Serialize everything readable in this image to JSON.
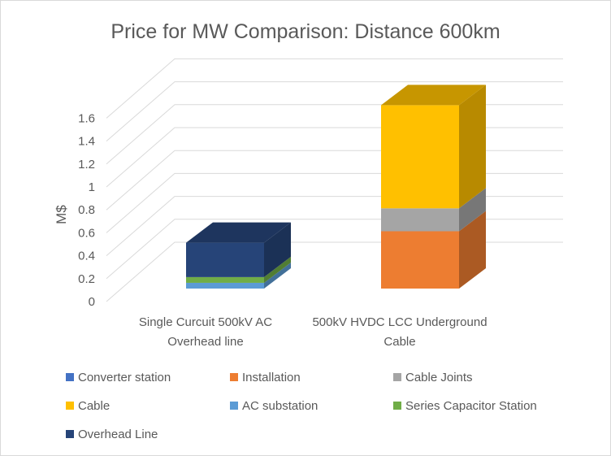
{
  "chart_data": {
    "type": "bar",
    "subtype": "3d-stacked-column",
    "title": "Price for MW Comparison: Distance 600km",
    "xlabel": "",
    "ylabel": "M$",
    "ylim": [
      0,
      1.6
    ],
    "yticks": [
      "0",
      "0.2",
      "0.4",
      "0.6",
      "0.8",
      "1",
      "1.2",
      "1.4",
      "1.6"
    ],
    "grid": true,
    "legend_position": "bottom",
    "categories": [
      [
        "Single Curcuit 500kV AC",
        "Overhead line"
      ],
      [
        "500kV HVDC LCC Underground",
        "Cable"
      ]
    ],
    "series": [
      {
        "name": "Converter station",
        "color": "#4472C4",
        "values": [
          0,
          0
        ]
      },
      {
        "name": "Installation",
        "color": "#ED7D31",
        "values": [
          0,
          0.5
        ]
      },
      {
        "name": "Cable Joints",
        "color": "#A5A5A5",
        "values": [
          0,
          0.2
        ]
      },
      {
        "name": "Cable",
        "color": "#FFC000",
        "values": [
          0,
          0.9
        ]
      },
      {
        "name": "AC substation",
        "color": "#5B9BD5",
        "values": [
          0.05,
          0
        ]
      },
      {
        "name": "Series Capacitor Station",
        "color": "#70AD47",
        "values": [
          0.05,
          0
        ]
      },
      {
        "name": "Overhead Line",
        "color": "#264478",
        "values": [
          0.3,
          0
        ]
      }
    ]
  }
}
